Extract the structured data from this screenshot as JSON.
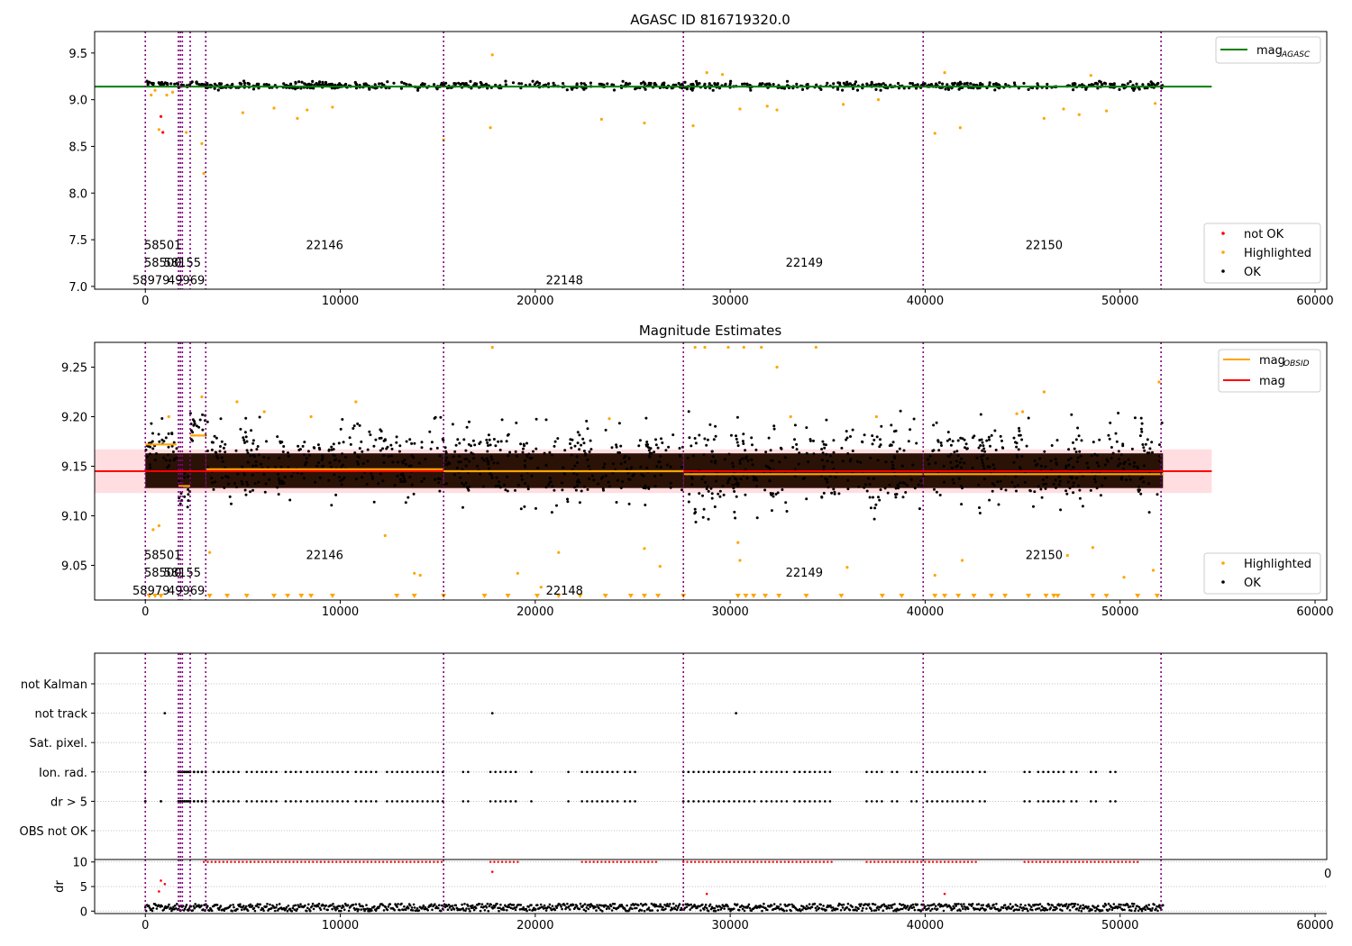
{
  "chart_data": [
    {
      "type": "scatter",
      "title": "AGASC ID 816719320.0",
      "xlim": [
        -2600,
        60600
      ],
      "ylim": [
        6.97,
        9.73
      ],
      "xticks": [
        0,
        10000,
        20000,
        30000,
        40000,
        50000,
        60000
      ],
      "xtick_labels": [
        "0",
        "10000",
        "20000",
        "30000",
        "40000",
        "50000",
        "60000"
      ],
      "yticks": [
        7.0,
        7.5,
        8.0,
        8.5,
        9.0,
        9.5
      ],
      "ytick_labels": [
        "7.0",
        "7.5",
        "8.0",
        "8.5",
        "9.0",
        "9.5"
      ],
      "series": [
        {
          "name": "mag",
          "name_subscript": "AGASC",
          "kind": "hline",
          "y": 9.14,
          "x_range": [
            -2600,
            54700
          ],
          "color": "#008000"
        },
        {
          "name": "not OK",
          "kind": "points",
          "color": "#ff0000",
          "x": [
            800,
            900
          ],
          "y": [
            8.82,
            8.65
          ]
        },
        {
          "name": "Highlighted",
          "kind": "points",
          "color": "#ffa500",
          "x": [
            300,
            500,
            700,
            1100,
            1400,
            2100,
            2900,
            3000,
            5000,
            6600,
            7800,
            8300,
            9600,
            15300,
            17700,
            17800,
            23400,
            25600,
            28100,
            28800,
            29600,
            30500,
            31900,
            32400,
            35800,
            37600,
            40500,
            41000,
            41800,
            46100,
            47100,
            47900,
            48500,
            49300,
            51800
          ],
          "y": [
            9.05,
            9.1,
            8.68,
            9.05,
            9.08,
            8.65,
            8.53,
            8.21,
            8.86,
            8.91,
            8.8,
            8.89,
            8.92,
            8.57,
            8.7,
            9.48,
            8.79,
            8.75,
            8.72,
            9.29,
            9.27,
            8.9,
            8.93,
            8.89,
            8.95,
            9.0,
            8.64,
            9.29,
            8.7,
            8.8,
            8.9,
            8.84,
            9.26,
            8.88,
            8.96
          ]
        },
        {
          "name": "OK",
          "kind": "band",
          "color": "#000000",
          "segments": [
            [
              0,
              1700,
              9.15,
              9.2
            ],
            [
              1700,
              2300,
              9.1,
              9.17
            ],
            [
              2300,
              3000,
              9.15,
              9.21
            ],
            [
              3000,
              52200,
              9.1,
              9.2
            ]
          ]
        }
      ],
      "vlines": [
        0,
        1700,
        1800,
        1900,
        2300,
        3100,
        15300,
        27600,
        39900,
        52100
      ],
      "obsid_labels": [
        {
          "text": "58501",
          "x": 900,
          "y": 7.45
        },
        {
          "text": "58500",
          "x": 900,
          "y": 7.26
        },
        {
          "text": "58155",
          "x": 1900,
          "y": 7.26
        },
        {
          "text": "58979",
          "x": 300,
          "y": 7.07
        },
        {
          "text": "49969",
          "x": 2100,
          "y": 7.07
        },
        {
          "text": "22146",
          "x": 9200,
          "y": 7.45
        },
        {
          "text": "22148",
          "x": 21500,
          "y": 7.07
        },
        {
          "text": "22149",
          "x": 33800,
          "y": 7.26
        },
        {
          "text": "22150",
          "x": 46100,
          "y": 7.45
        }
      ],
      "legends": [
        {
          "position": "upper right",
          "entries": [
            {
              "label": "mag",
              "sub": "AGASC",
              "marker": "line",
              "color": "#008000"
            }
          ]
        },
        {
          "position": "lower right",
          "entries": [
            {
              "label": "not OK",
              "marker": "dot",
              "color": "#ff0000"
            },
            {
              "label": "Highlighted",
              "marker": "dot",
              "color": "#ffa500"
            },
            {
              "label": "OK",
              "marker": "dot",
              "color": "#000000"
            }
          ]
        }
      ]
    },
    {
      "type": "scatter",
      "title": "Magnitude Estimates",
      "xlim": [
        -2600,
        60600
      ],
      "ylim": [
        9.015,
        9.275
      ],
      "xticks": [
        0,
        10000,
        20000,
        30000,
        40000,
        50000,
        60000
      ],
      "xtick_labels": [
        "0",
        "10000",
        "20000",
        "30000",
        "40000",
        "50000",
        "60000"
      ],
      "yticks": [
        9.05,
        9.1,
        9.15,
        9.2,
        9.25
      ],
      "ytick_labels": [
        "9.05",
        "9.10",
        "9.15",
        "9.20",
        "9.25"
      ],
      "mag": {
        "value": 9.145,
        "band": [
          9.123,
          9.167
        ],
        "x_range": [
          -2600,
          54700
        ],
        "color": "#ff0000"
      },
      "mag_obsid_segments": [
        {
          "x": [
            0,
            1600
          ],
          "y": 9.172
        },
        {
          "x": [
            1700,
            2300
          ],
          "y": 9.13
        },
        {
          "x": [
            2300,
            3100
          ],
          "y": 9.181
        },
        {
          "x": [
            3100,
            15300
          ],
          "y": 9.147
        },
        {
          "x": [
            15300,
            27600
          ],
          "y": 9.145
        },
        {
          "x": [
            27600,
            52200
          ],
          "y": 9.142
        }
      ],
      "series": [
        {
          "name": "Highlighted",
          "kind": "points",
          "color": "#ffa500",
          "x": [
            400,
            700,
            1200,
            2900,
            3300,
            4700,
            6100,
            8500,
            10800,
            12300,
            13800,
            14100,
            17800,
            19100,
            20300,
            21200,
            23800,
            25600,
            26400,
            28200,
            28700,
            29900,
            30400,
            30500,
            30700,
            31600,
            32400,
            33100,
            34400,
            36000,
            37500,
            40500,
            41900,
            44700,
            45000,
            46100,
            47300,
            48600,
            50200,
            51700,
            52000
          ],
          "y": [
            9.086,
            9.09,
            9.2,
            9.22,
            9.063,
            9.215,
            9.205,
            9.2,
            9.215,
            9.08,
            9.042,
            9.04,
            9.27,
            9.042,
            9.028,
            9.063,
            9.198,
            9.067,
            9.049,
            9.27,
            9.27,
            9.27,
            9.073,
            9.055,
            9.27,
            9.27,
            9.25,
            9.2,
            9.27,
            9.048,
            9.2,
            9.04,
            9.055,
            9.203,
            9.205,
            9.225,
            9.06,
            9.068,
            9.038,
            9.045,
            9.235
          ]
        },
        {
          "name": "OK",
          "kind": "band",
          "color": "#000000",
          "segments": [
            [
              0,
              1700,
              9.14,
              9.2
            ],
            [
              1700,
              2300,
              9.105,
              9.15
            ],
            [
              2300,
              3100,
              9.155,
              9.218
            ],
            [
              3100,
              15300,
              9.11,
              9.2
            ],
            [
              15300,
              27600,
              9.103,
              9.2
            ],
            [
              27600,
              39900,
              9.093,
              9.207
            ],
            [
              39900,
              52200,
              9.1,
              9.205
            ]
          ]
        }
      ],
      "below_range_markers": [
        200,
        500,
        800,
        3300,
        4200,
        5200,
        6600,
        7300,
        8000,
        8500,
        9600,
        12900,
        13800,
        15300,
        17400,
        18600,
        20100,
        21200,
        22300,
        23600,
        24900,
        25600,
        26300,
        27600,
        30400,
        30800,
        31200,
        31800,
        32500,
        33900,
        35700,
        37800,
        38800,
        40500,
        41000,
        41700,
        42500,
        43400,
        44100,
        45300,
        46200,
        46600,
        46800,
        48600,
        49300,
        50900,
        51900
      ],
      "vlines": [
        0,
        1700,
        1800,
        1900,
        2300,
        3100,
        15300,
        27600,
        39900,
        52100
      ],
      "obsid_labels": [
        {
          "text": "58501",
          "x": 900,
          "y": 9.061
        },
        {
          "text": "58500",
          "x": 900,
          "y": 9.043
        },
        {
          "text": "58155",
          "x": 1900,
          "y": 9.043
        },
        {
          "text": "58979",
          "x": 300,
          "y": 9.025
        },
        {
          "text": "49969",
          "x": 2100,
          "y": 9.025
        },
        {
          "text": "22146",
          "x": 9200,
          "y": 9.061
        },
        {
          "text": "22148",
          "x": 21500,
          "y": 9.025
        },
        {
          "text": "22149",
          "x": 33800,
          "y": 9.043
        },
        {
          "text": "22150",
          "x": 46100,
          "y": 9.061
        }
      ],
      "legends": [
        {
          "position": "upper right",
          "entries": [
            {
              "label": "mag",
              "sub": "OBSID",
              "marker": "line",
              "color": "#ffa500"
            },
            {
              "label": "mag",
              "sub": "",
              "marker": "line",
              "color": "#ff0000"
            }
          ]
        },
        {
          "position": "lower right",
          "entries": [
            {
              "label": "Highlighted",
              "marker": "dot",
              "color": "#ffa500"
            },
            {
              "label": "OK",
              "marker": "dot",
              "color": "#000000"
            }
          ]
        }
      ]
    },
    {
      "type": "scatter",
      "title": "",
      "xlim": [
        -2600,
        60600
      ],
      "flags": [
        "not Kalman",
        "not track",
        "Sat. pixel.",
        "Ion. rad.",
        "dr > 5",
        "OBS not OK"
      ],
      "flag_points": {
        "not track": [
          1000,
          17800,
          30300
        ],
        "Ion. rad.": [
          0,
          1700,
          1800,
          1900,
          2000,
          2100,
          2200,
          2300,
          2500,
          2700,
          2900,
          3100
        ],
        "dr > 5": [
          0,
          800,
          1700,
          1800,
          1900,
          2000,
          2100,
          2200,
          2300,
          2500,
          2700,
          2900,
          3100
        ]
      },
      "flag_runs": {
        "Ion. rad.": [
          [
            3500,
            4000
          ],
          [
            4000,
            5000
          ],
          [
            5200,
            6000
          ],
          [
            6200,
            6800
          ],
          [
            7200,
            8000
          ],
          [
            8300,
            10600
          ],
          [
            10800,
            12000
          ],
          [
            12400,
            15300
          ],
          [
            16300,
            16700
          ],
          [
            17700,
            19100
          ],
          [
            19800,
            19900
          ],
          [
            21700,
            21800
          ],
          [
            22400,
            24300
          ],
          [
            24600,
            25300
          ],
          [
            27600,
            28700
          ],
          [
            28900,
            31300
          ],
          [
            31600,
            33000
          ],
          [
            33300,
            34400
          ],
          [
            34600,
            35200
          ],
          [
            37000,
            38000
          ],
          [
            38300,
            38800
          ],
          [
            39300,
            39600
          ],
          [
            40100,
            42600
          ],
          [
            42800,
            43200
          ],
          [
            45100,
            45500
          ],
          [
            45800,
            47200
          ],
          [
            47500,
            47900
          ],
          [
            48500,
            48800
          ],
          [
            49500,
            49900
          ]
        ]
      },
      "dr_panel": {
        "ylabel": "dr",
        "yticks": [
          0,
          5,
          10
        ],
        "ytick_labels": [
          "0",
          "5",
          "10"
        ],
        "ylim": [
          -0.5,
          10.5
        ],
        "clipped_label": "0",
        "red_points": {
          "x": [
            700,
            800,
            1000,
            17800,
            28800,
            41000
          ],
          "y": [
            4,
            6.2,
            5.5,
            8,
            3.5,
            3.5
          ]
        },
        "red_runs_at_10": [
          [
            3000,
            15300
          ],
          [
            17700,
            19100
          ],
          [
            22400,
            26300
          ],
          [
            27600,
            35200
          ],
          [
            37000,
            42600
          ],
          [
            45100,
            51000
          ]
        ],
        "black_band": {
          "x_range": [
            0,
            52200
          ],
          "y": [
            0,
            1.5
          ]
        }
      },
      "xticks": [
        0,
        10000,
        20000,
        30000,
        40000,
        50000,
        60000
      ],
      "xtick_labels": [
        "0",
        "10000",
        "20000",
        "30000",
        "40000",
        "50000",
        "60000"
      ],
      "vlines": [
        0,
        1700,
        1800,
        1900,
        2300,
        3100,
        15300,
        27600,
        39900,
        52100
      ]
    }
  ]
}
